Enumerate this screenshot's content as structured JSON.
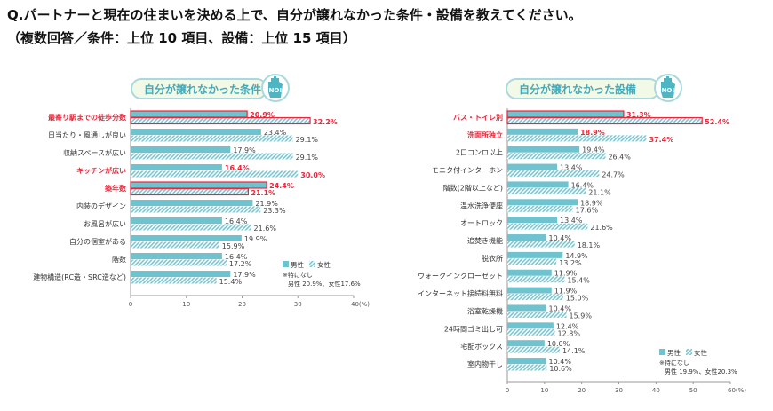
{
  "question": "Q.パートナーと現在の住まいを決める上で、自分が譲れなかった条件・設備を教えてください。",
  "subtitle": "（複数回答／条件：上位 10 項目、設備：上位 15 項目）",
  "colors": {
    "male": "#6fc3cf",
    "female_stripe": "#7cc6d2",
    "highlight": "#e8273a",
    "banner_border": "#a9d9df",
    "banner_fill": "#f2f9e6",
    "banner_text": "#46a9b8",
    "icon": "no-hand-icon"
  },
  "chart_data": [
    {
      "type": "bar",
      "orientation": "horizontal",
      "title": "自分が譲れなかった条件",
      "xlim": [
        0,
        40
      ],
      "xticks": [
        "0",
        "10",
        "20",
        "30",
        "40(%)"
      ],
      "legend": {
        "male": "男性",
        "female": "女性",
        "placement": "bottom-right"
      },
      "note": [
        "※特になし",
        "男性 20.9%、女性17.6%"
      ],
      "categories": [
        "最寄り駅までの徒歩分数",
        "日当たり・風通しが良い",
        "収納スペースが広い",
        "キッチンが広い",
        "築年数",
        "内装のデザイン",
        "お風呂が広い",
        "自分の個室がある",
        "階数",
        "建物構造(RC造・SRC造など)"
      ],
      "highlight_label": [
        true,
        false,
        false,
        true,
        true,
        false,
        false,
        false,
        false,
        false
      ],
      "highlight_box": [
        true,
        false,
        false,
        false,
        true,
        false,
        false,
        false,
        false,
        false
      ],
      "series": [
        {
          "name": "男性",
          "values": [
            20.9,
            23.4,
            17.9,
            16.4,
            24.4,
            21.9,
            16.4,
            19.9,
            16.4,
            17.9
          ]
        },
        {
          "name": "女性",
          "values": [
            32.2,
            29.1,
            29.1,
            30.0,
            21.1,
            23.3,
            21.6,
            15.9,
            17.2,
            15.4
          ]
        }
      ]
    },
    {
      "type": "bar",
      "orientation": "horizontal",
      "title": "自分が譲れなかった設備",
      "xlim": [
        0,
        60
      ],
      "xticks": [
        "0",
        "10",
        "20",
        "30",
        "40",
        "50",
        "60(%)"
      ],
      "legend": {
        "male": "男性",
        "female": "女性",
        "placement": "bottom-right"
      },
      "note": [
        "※特になし",
        "男性 19.9%、女性20.3%"
      ],
      "categories": [
        "バス・トイレ別",
        "洗面所独立",
        "2口コンロ以上",
        "モニタ付インターホン",
        "階数(2階以上など)",
        "温水洗浄便座",
        "オートロック",
        "追焚き機能",
        "脱衣所",
        "ウォークインクローゼット",
        "インターネット接続料無料",
        "浴室乾燥機",
        "24時間ゴミ出し可",
        "宅配ボックス",
        "室内物干し"
      ],
      "highlight_label": [
        true,
        true,
        false,
        false,
        false,
        false,
        false,
        false,
        false,
        false,
        false,
        false,
        false,
        false,
        false
      ],
      "highlight_box": [
        true,
        false,
        false,
        false,
        false,
        false,
        false,
        false,
        false,
        false,
        false,
        false,
        false,
        false,
        false
      ],
      "series": [
        {
          "name": "男性",
          "values": [
            31.3,
            18.9,
            19.4,
            13.4,
            16.4,
            18.9,
            13.4,
            10.4,
            14.9,
            11.9,
            11.9,
            10.4,
            12.4,
            10.0,
            10.4
          ]
        },
        {
          "name": "女性",
          "values": [
            52.4,
            37.4,
            26.4,
            24.7,
            21.1,
            17.6,
            21.6,
            18.1,
            13.2,
            15.4,
            15.0,
            15.9,
            12.8,
            14.1,
            10.6
          ]
        }
      ]
    }
  ]
}
